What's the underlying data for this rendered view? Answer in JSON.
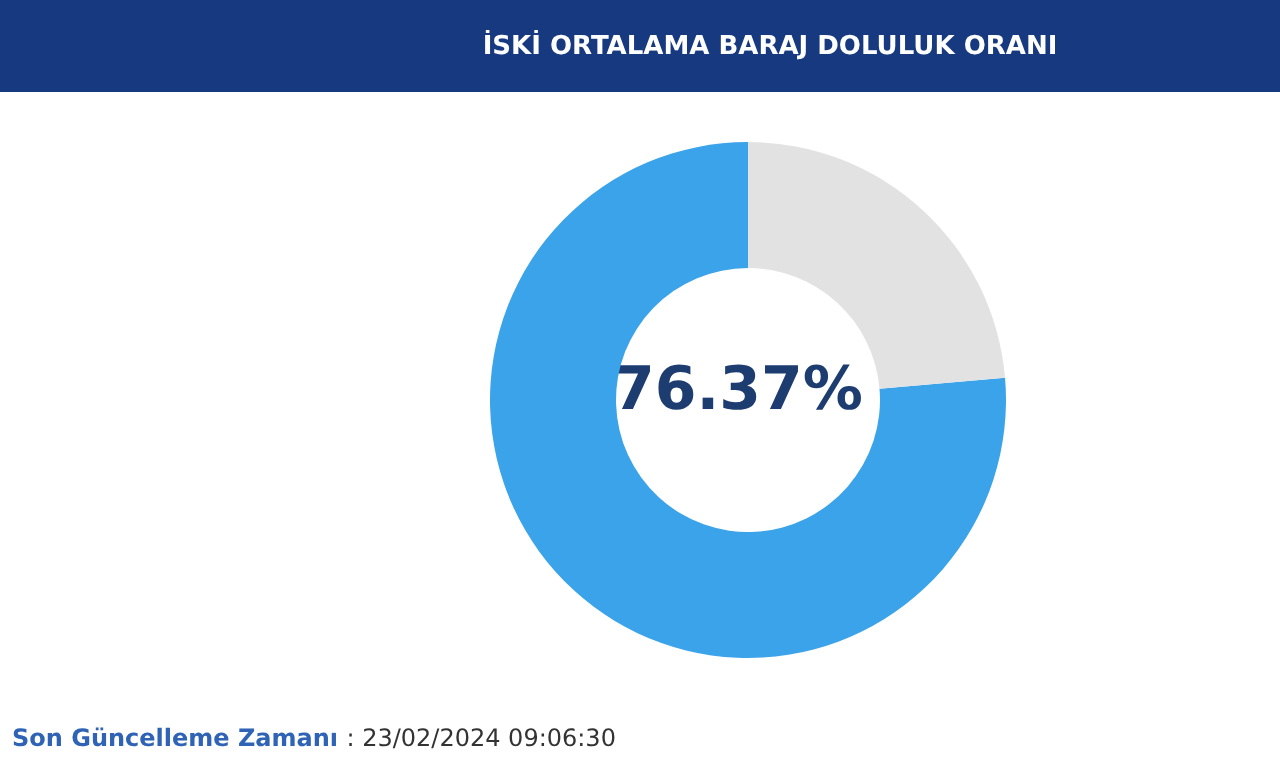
{
  "chart_data": {
    "type": "donut",
    "title": "İSKİ ORTALAMA BARAJ DOLULUK ORANI",
    "categories": [
      null,
      null
    ],
    "values": [
      76.37,
      23.63
    ],
    "colors": [
      "#3ba3e9",
      "#e2e2e2"
    ],
    "value_labels": [
      "76.37%",
      null
    ],
    "annotations": [
      "Son Güncelleme Zamanı : 23/02/2024 09:06:30"
    ]
  }
}
